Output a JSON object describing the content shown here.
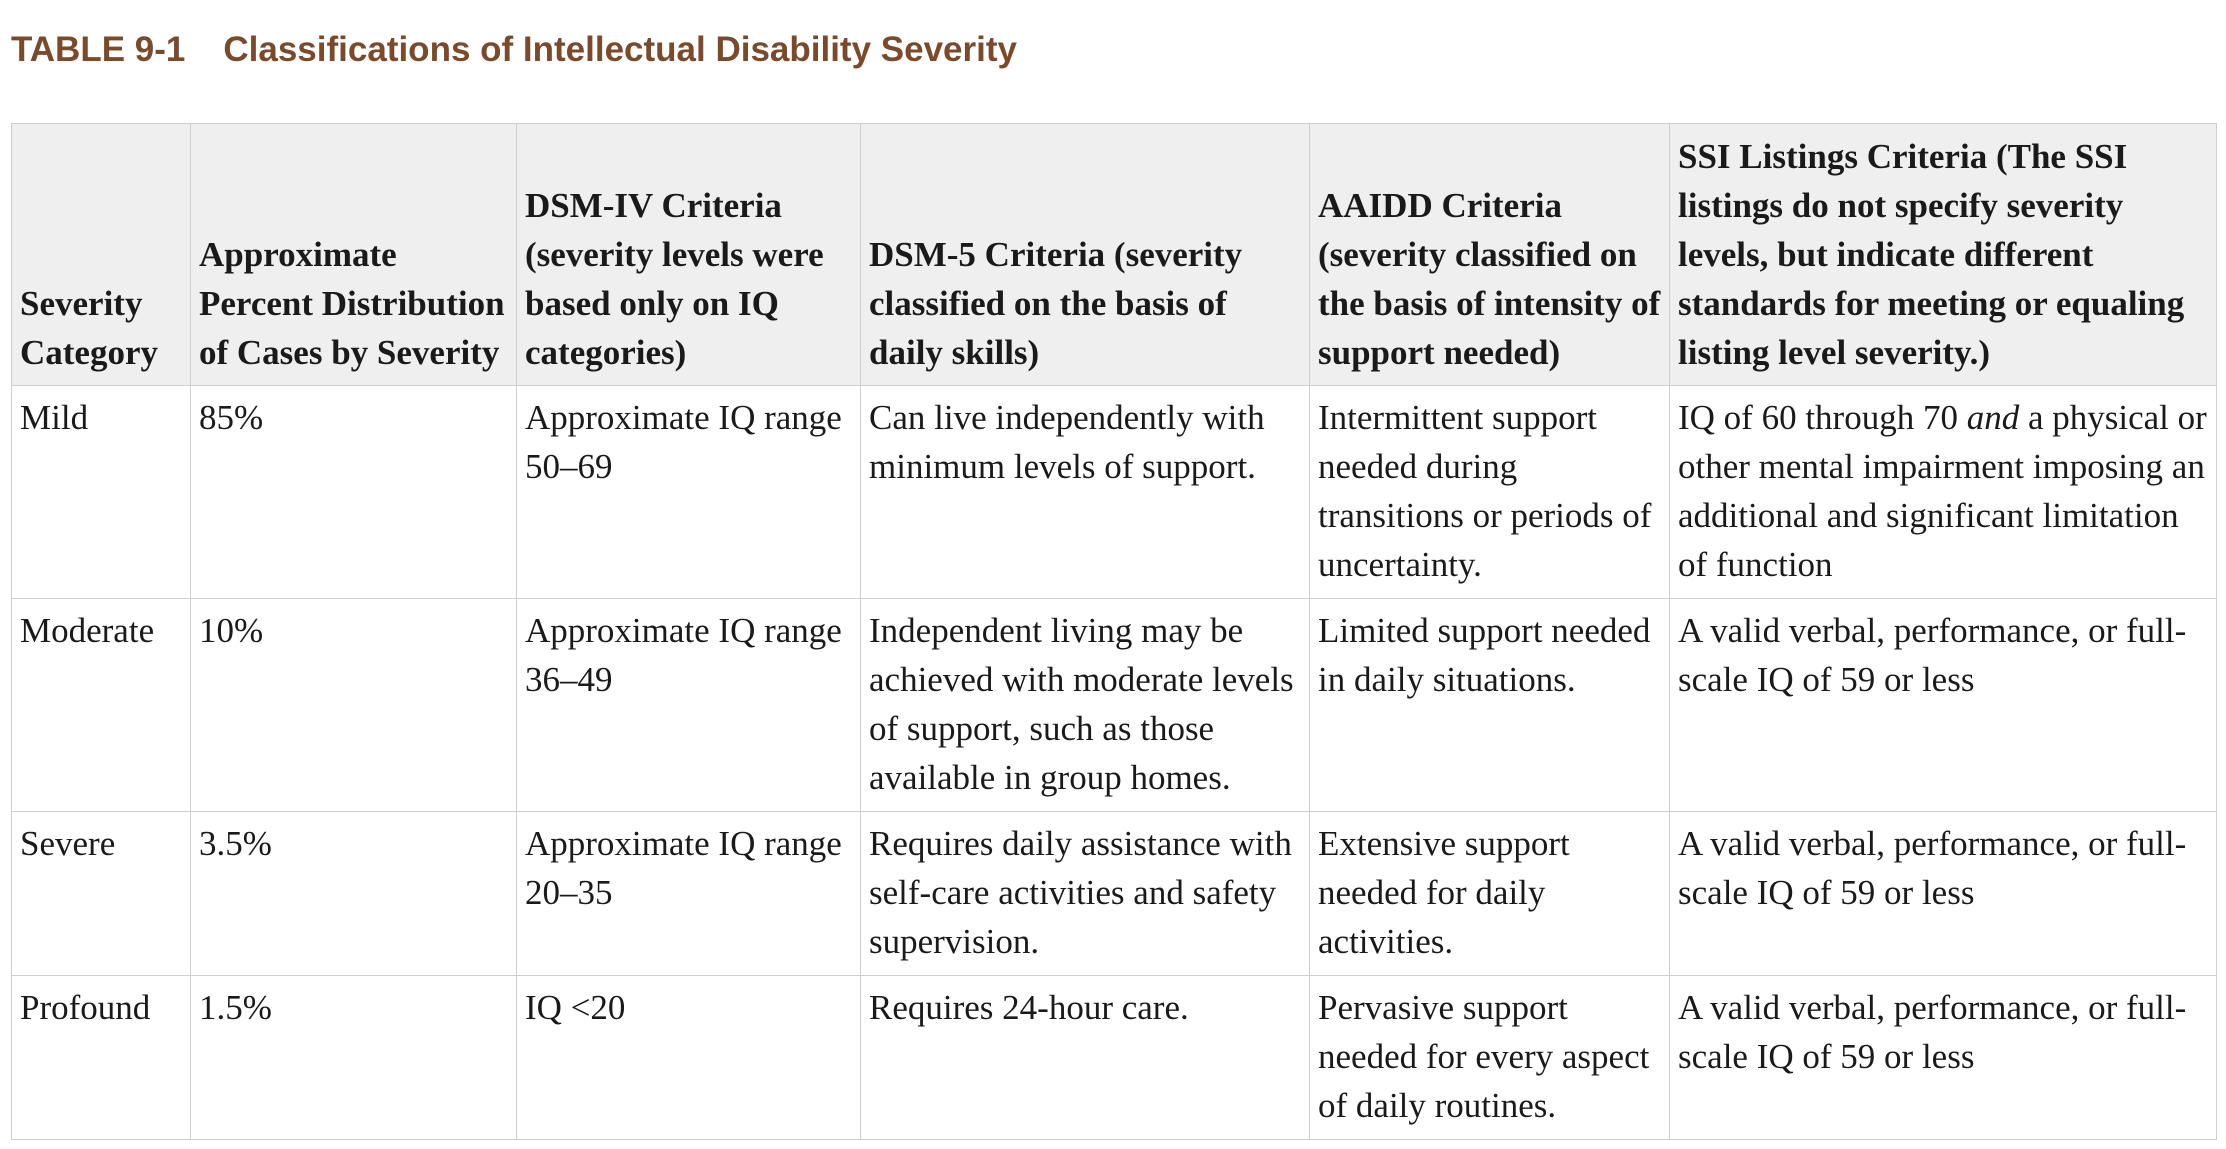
{
  "caption": {
    "number": "TABLE 9-1",
    "title": "Classifications of Intellectual Disability Severity"
  },
  "table": {
    "headers": [
      "Severity Category",
      "Approximate Percent Distribution of Cases by Severity",
      "DSM-IV Criteria (severity levels were based only on IQ categories)",
      "DSM-5 Criteria (severity classified on the basis of daily skills)",
      "AAIDD Criteria (severity classified on the basis of intensity of support needed)",
      "SSI Listings Criteria (The SSI listings do not specify severity levels, but indicate different standards for meeting or equaling listing level severity.)"
    ],
    "rows": [
      {
        "category": "Mild",
        "percent": "85%",
        "dsm4": "Approximate IQ range 50–69",
        "dsm5": "Can live independently with minimum levels of support.",
        "aaidd": "Intermittent support needed during transitions or periods of uncertainty.",
        "ssi_pre": "IQ of 60 through 70 ",
        "ssi_em": "and",
        "ssi_post": " a physical or other mental impairment imposing an additional and significant limitation of function"
      },
      {
        "category": "Moderate",
        "percent": "10%",
        "dsm4": "Approximate IQ range 36–49",
        "dsm5": "Independent living may be achieved with moderate levels of support, such as those available in group homes.",
        "aaidd": "Limited support needed in daily situations.",
        "ssi": "A valid verbal, performance, or full-scale IQ of 59 or less"
      },
      {
        "category": "Severe",
        "percent": "3.5%",
        "dsm4": "Approximate IQ range 20–35",
        "dsm5": "Requires daily assistance with self-care activities and safety supervision.",
        "aaidd": "Extensive support needed for daily activities.",
        "ssi": "A valid verbal, performance, or full-scale IQ of 59 or less"
      },
      {
        "category": "Profound",
        "percent": "1.5%",
        "dsm4": "IQ <20",
        "dsm5": "Requires 24-hour care.",
        "aaidd": "Pervasive support needed for every aspect of daily routines.",
        "ssi": "A valid verbal, performance, or full-scale IQ of 59 or less"
      }
    ]
  }
}
